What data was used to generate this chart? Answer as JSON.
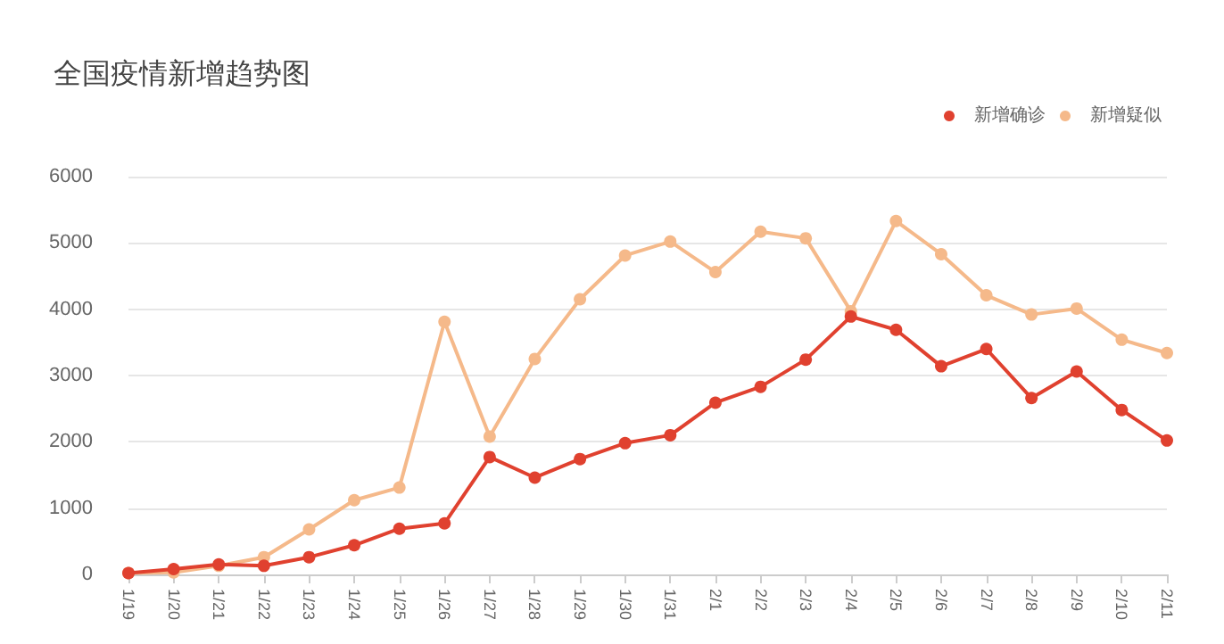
{
  "chart_data": {
    "type": "line",
    "title": "全国疫情新增趋势图",
    "categories": [
      "1/19",
      "1/20",
      "1/21",
      "1/22",
      "1/23",
      "1/24",
      "1/25",
      "1/26",
      "1/27",
      "1/28",
      "1/29",
      "1/30",
      "1/31",
      "2/1",
      "2/2",
      "2/3",
      "2/4",
      "2/5",
      "2/6",
      "2/7",
      "2/8",
      "2/9",
      "2/10",
      "2/11"
    ],
    "series": [
      {
        "name": "新增确诊",
        "color": "#e0412f",
        "values": [
          20,
          80,
          150,
          130,
          260,
          440,
          690,
          770,
          1770,
          1460,
          1740,
          1980,
          2100,
          2590,
          2830,
          3240,
          3890,
          3690,
          3140,
          3400,
          2660,
          3060,
          2480,
          2020
        ]
      },
      {
        "name": "新增疑似",
        "color": "#f5b98a",
        "values": [
          20,
          30,
          130,
          260,
          680,
          1120,
          1310,
          3810,
          2080,
          3250,
          4150,
          4810,
          5020,
          4560,
          5170,
          5070,
          3970,
          5330,
          4830,
          4210,
          3920,
          4010,
          3540,
          3340
        ]
      }
    ],
    "ylim": [
      0,
      6000
    ],
    "yticks": [
      0,
      1000,
      2000,
      3000,
      4000,
      5000,
      6000
    ],
    "grid": "y",
    "legend": "top right",
    "marker": "circle",
    "line_style": "solid"
  }
}
